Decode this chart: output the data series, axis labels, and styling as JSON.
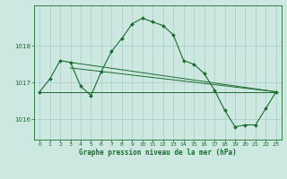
{
  "title": "Graphe pression niveau de la mer (hPa)",
  "background_color": "#cce8e0",
  "grid_color": "#aacccc",
  "line_color": "#1a6b2e",
  "marker_color": "#1a6b2e",
  "xlim": [
    -0.5,
    23.5
  ],
  "ylim": [
    1015.45,
    1019.1
  ],
  "yticks": [
    1016,
    1017,
    1018
  ],
  "xticks": [
    0,
    1,
    2,
    3,
    4,
    5,
    6,
    7,
    8,
    9,
    10,
    11,
    12,
    13,
    14,
    15,
    16,
    17,
    18,
    19,
    20,
    21,
    22,
    23
  ],
  "main_y": [
    1016.75,
    1017.1,
    1017.6,
    1017.55,
    1016.9,
    1016.65,
    1017.3,
    1017.85,
    1018.2,
    1018.6,
    1018.75,
    1018.65,
    1018.55,
    1018.3,
    1017.6,
    1017.5,
    1017.25,
    1016.8,
    1016.25,
    1015.8,
    1015.85,
    1015.85,
    1016.3,
    1016.75
  ],
  "line2_x": [
    0,
    23
  ],
  "line2_y": [
    1016.75,
    1016.75
  ],
  "line3_x": [
    3,
    23
  ],
  "line3_y": [
    1017.55,
    1016.75
  ],
  "line4_x": [
    3,
    23
  ],
  "line4_y": [
    1017.4,
    1016.75
  ]
}
